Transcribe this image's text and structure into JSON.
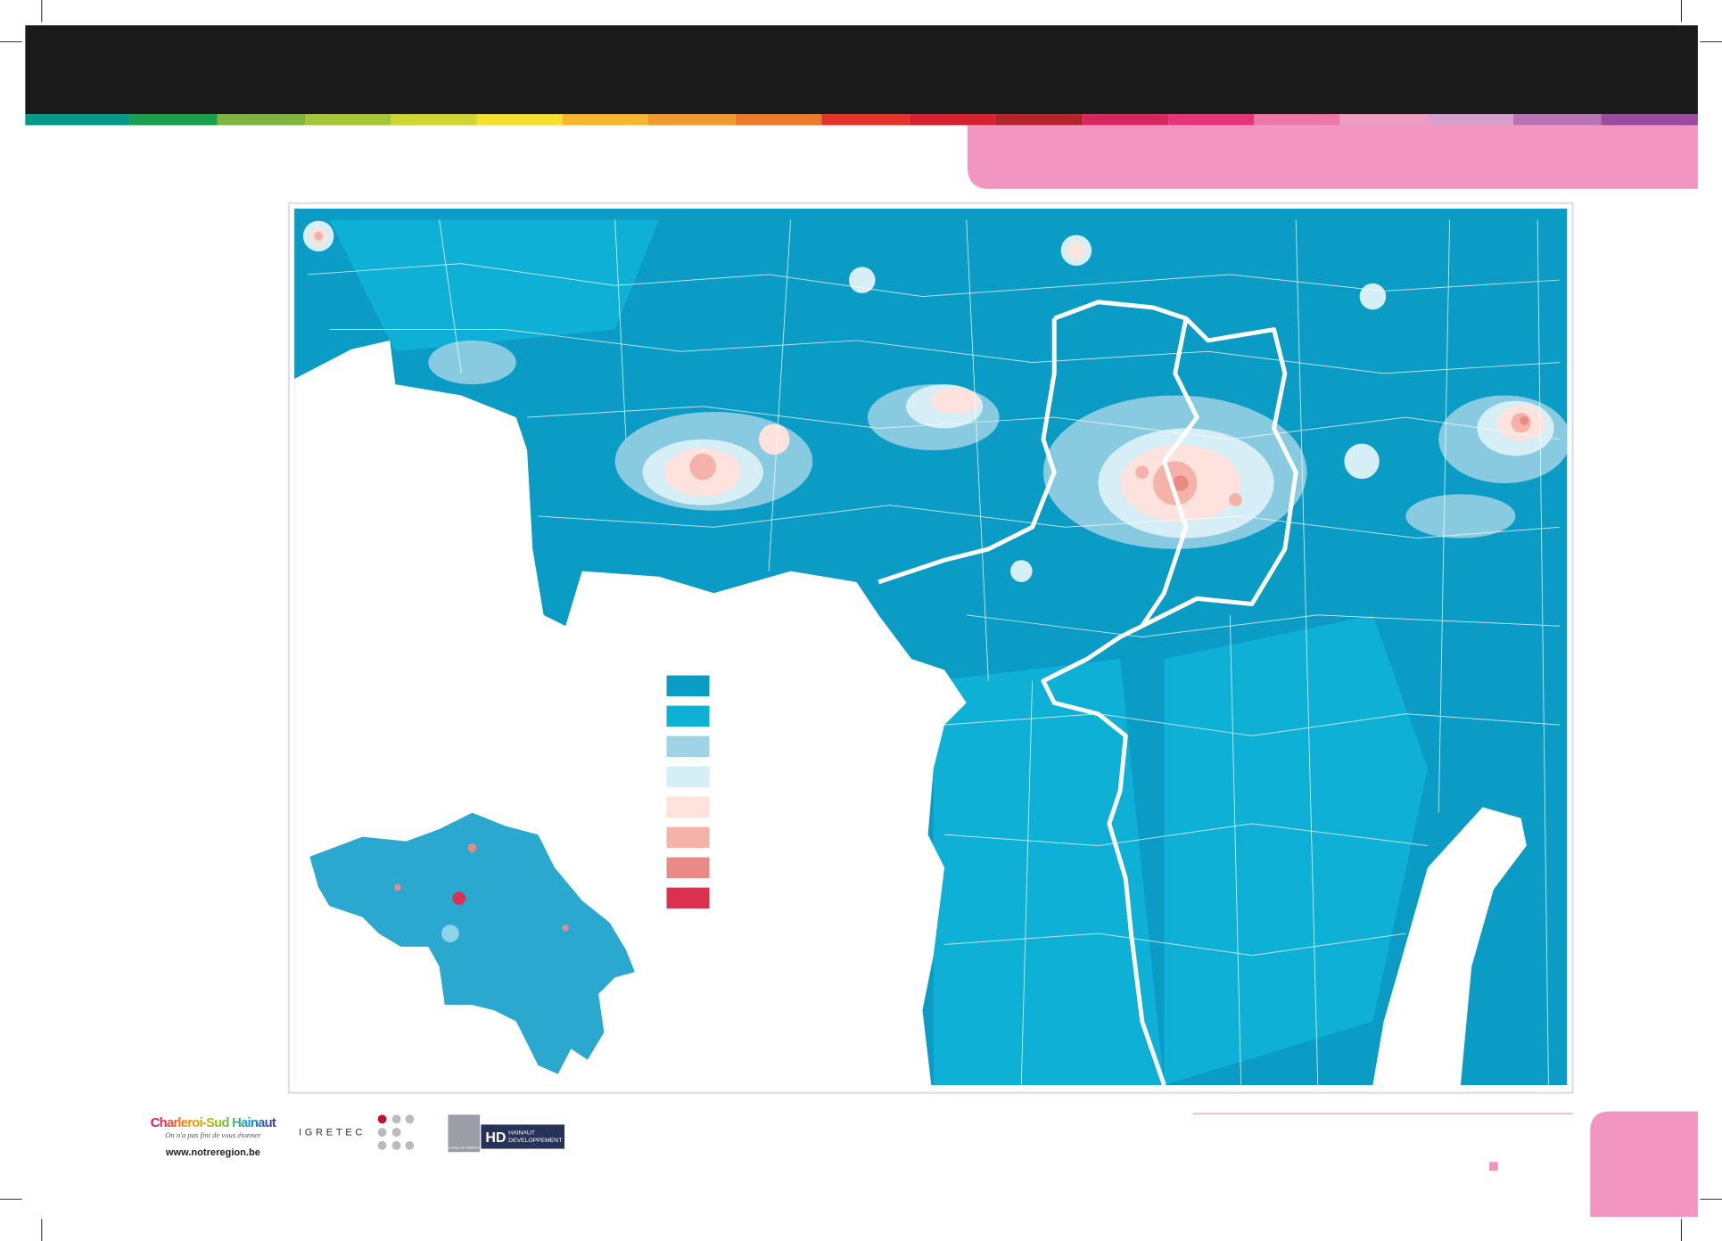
{
  "logos": {
    "charleroi": {
      "name": "Charleroi-Sud Hainaut",
      "tagline": "On n'a pas fini de vous étonner",
      "url": "www.notreregion.be"
    },
    "igretec": "IGRETEC",
    "hainaut": {
      "province": "Province de HAINAUT",
      "name": "HAINAUT",
      "subtitle": "DEVELOPPEMENT"
    }
  },
  "legend": {
    "colors": [
      "#0a9cc4",
      "#0fb0d6",
      "#9fd4e6",
      "#d6eef6",
      "#fde2dd",
      "#f4b2a9",
      "#ea8a84",
      "#dc3050"
    ]
  }
}
